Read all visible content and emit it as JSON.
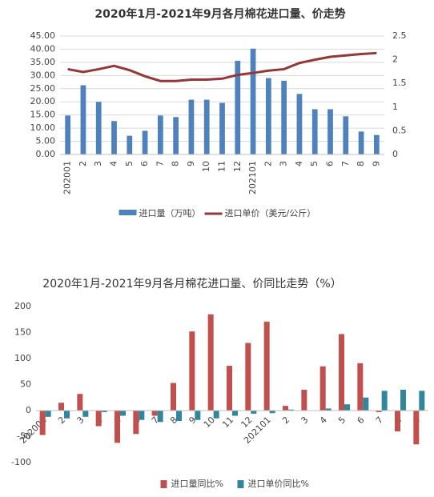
{
  "chart_data": [
    {
      "type": "bar",
      "title": "2020年1月-2021年9月各月棉花进口量、价走势",
      "categories": [
        "202001",
        "2",
        "3",
        "4",
        "5",
        "6",
        "7",
        "8",
        "9",
        "10",
        "11",
        "12",
        "202101",
        "2",
        "3",
        "4",
        "5",
        "6",
        "7",
        "8",
        "9"
      ],
      "series": [
        {
          "name": "进口量（万吨）",
          "color": "#4f81bd",
          "values": [
            14.8,
            26.3,
            20,
            12.7,
            7.1,
            9,
            14.8,
            14.2,
            20.8,
            20.8,
            19.6,
            35.6,
            40.2,
            29,
            28,
            23,
            17.2,
            17.2,
            14.5,
            8.7,
            7.4
          ]
        },
        {
          "name": "进口单价（美元/公斤）",
          "color": "#953735",
          "type": "line",
          "axis": "y2",
          "values": [
            1.8,
            1.74,
            1.8,
            1.87,
            1.78,
            1.65,
            1.55,
            1.55,
            1.58,
            1.58,
            1.6,
            1.68,
            1.72,
            1.77,
            1.8,
            1.93,
            2.0,
            2.06,
            2.09,
            2.12,
            2.14
          ]
        }
      ],
      "ylim": [
        0,
        45
      ],
      "yticks": [
        {
          "value": 0,
          "label": "0.00"
        },
        {
          "value": 5,
          "label": "5.00"
        },
        {
          "value": 10,
          "label": "10.00"
        },
        {
          "value": 15,
          "label": "15.00"
        },
        {
          "value": 20,
          "label": "20.00"
        },
        {
          "value": 25,
          "label": "25.00"
        },
        {
          "value": 30,
          "label": "30.00"
        },
        {
          "value": 35,
          "label": "35.00"
        },
        {
          "value": 40,
          "label": "40.00"
        },
        {
          "value": 45,
          "label": "45.00"
        }
      ],
      "y2lim": [
        0,
        2.5
      ],
      "y2ticks": [
        0,
        0.5,
        1,
        1.5,
        2,
        2.5
      ],
      "legend": "bottom"
    },
    {
      "type": "bar",
      "title": "2020年1月-2021年9月各月棉花进口量、价同比走势（%）",
      "categories": [
        "202001",
        "2",
        "3",
        "4",
        "5",
        "6",
        "7",
        "8",
        "9",
        "10",
        "11",
        "12",
        "202101",
        "2",
        "3",
        "4",
        "5",
        "6",
        "7",
        "8",
        "9"
      ],
      "series": [
        {
          "name": "进口量同比%",
          "color": "#c0504d",
          "values": [
            -47,
            15,
            32,
            -30,
            -62,
            -45,
            -10,
            53,
            152,
            185,
            86,
            130,
            171,
            9,
            40,
            85,
            147,
            91,
            -3,
            -40,
            -65
          ]
        },
        {
          "name": "进口单价同比%",
          "color": "#31859c",
          "values": [
            -12,
            -15,
            -12,
            -3,
            -10,
            -18,
            -22,
            -20,
            -18,
            -15,
            -10,
            -6,
            -5,
            2,
            0,
            4,
            12,
            25,
            38,
            40,
            38
          ]
        }
      ],
      "ylim": [
        -100,
        200
      ],
      "yticks": [
        -100,
        -50,
        0,
        50,
        100,
        150,
        200
      ],
      "legend": "bottom"
    }
  ]
}
